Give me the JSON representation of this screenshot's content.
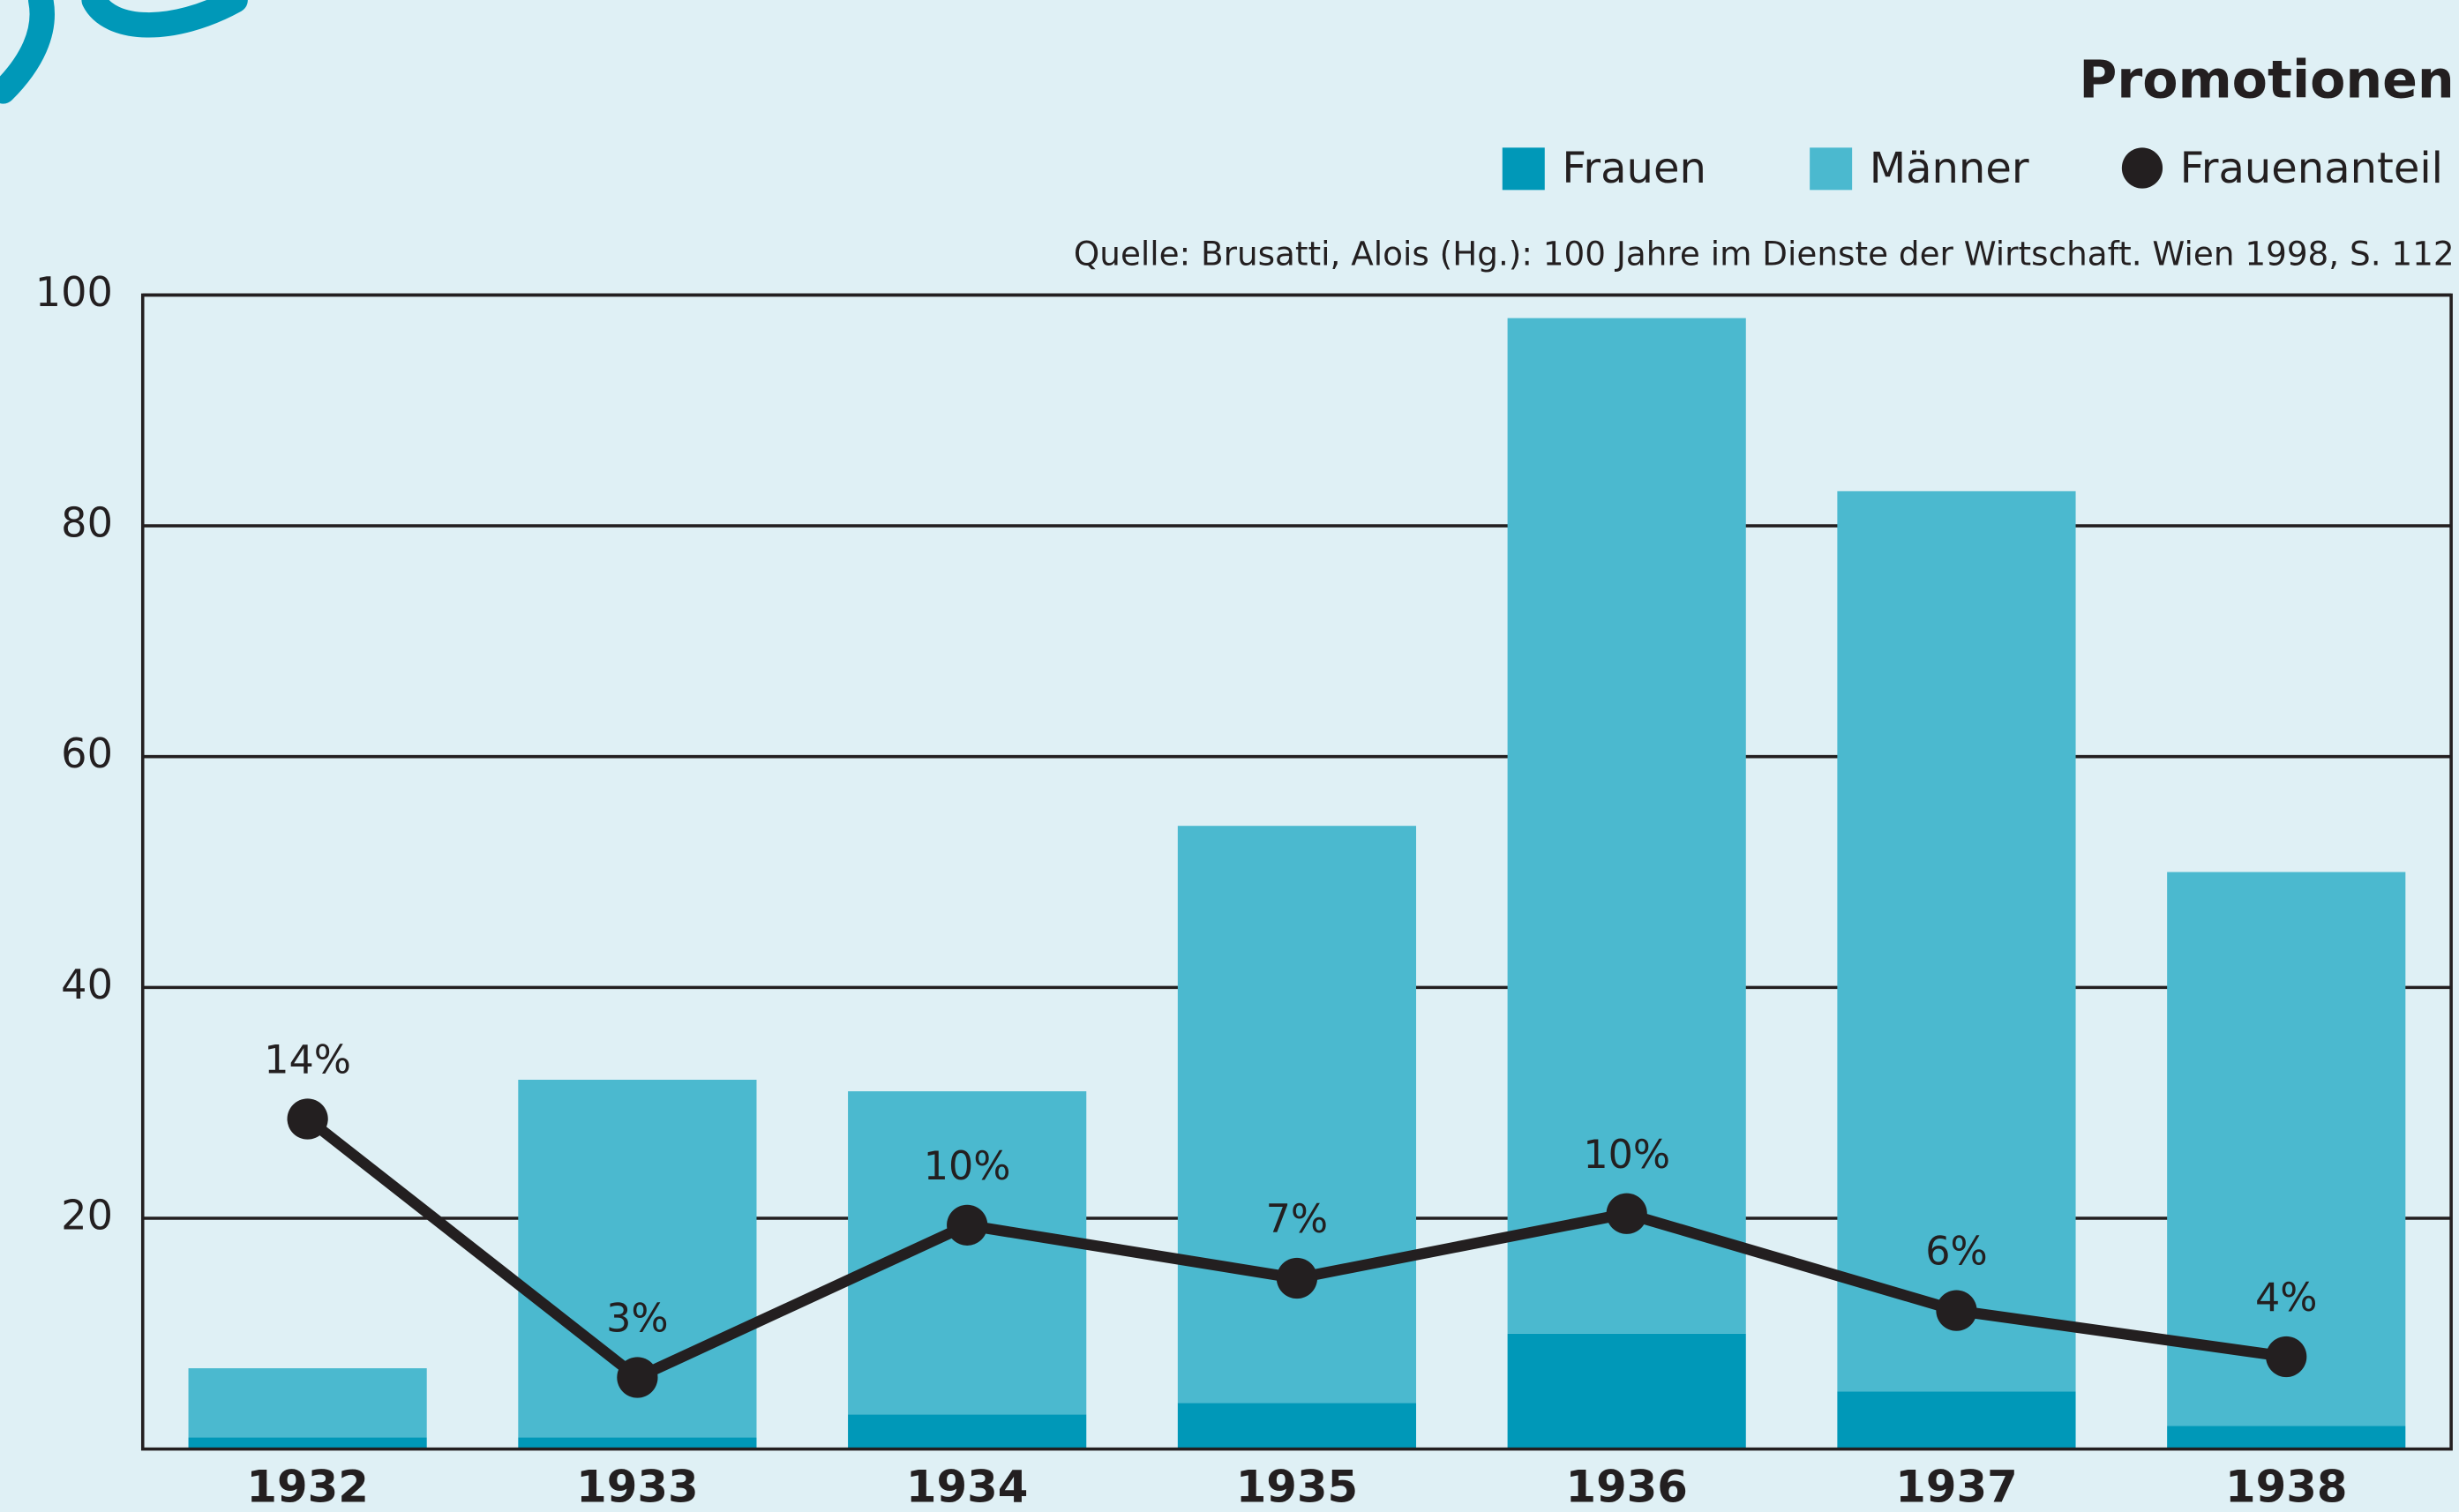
{
  "chart_data": {
    "type": "bar",
    "stacked": true,
    "title": "Promotionen",
    "source": "Quelle: Brusatti, Alois (Hg.): 100 Jahre im Dienste der Wirtschaft. Wien 1998, S. 112",
    "categories": [
      "1932",
      "1933",
      "1934",
      "1935",
      "1936",
      "1937",
      "1938"
    ],
    "series": [
      {
        "name": "Frauen",
        "type": "bar",
        "color": "#0098b8",
        "values": [
          1,
          1,
          3,
          4,
          10,
          5,
          2
        ]
      },
      {
        "name": "Männer",
        "type": "bar",
        "color": "#4bb9cf",
        "values": [
          6,
          31,
          28,
          50,
          88,
          78,
          48
        ]
      },
      {
        "name": "Frauenanteil",
        "type": "line",
        "axis": "y2",
        "color": "#231f20",
        "values": [
          14.3,
          3.1,
          9.7,
          7.4,
          10.2,
          6.0,
          4.0
        ],
        "value_labels": [
          "14%",
          "3%",
          "10%",
          "7%",
          "10%",
          "6%",
          "4%"
        ]
      }
    ],
    "ylim": [
      0,
      100
    ],
    "yticks": [
      20,
      40,
      60,
      80,
      100
    ],
    "y2lim": [
      0,
      50
    ],
    "grid": true
  }
}
